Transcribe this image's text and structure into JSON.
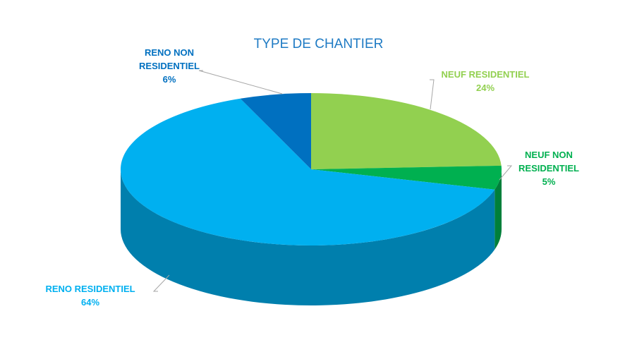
{
  "chart_data": {
    "type": "pie3d",
    "title": "TYPE DE CHANTIER",
    "categories": [
      "NEUF RESIDENTIEL",
      "NEUF NON RESIDENTIEL",
      "RENO RESIDENTIEL",
      "RENO NON RESIDENTIEL"
    ],
    "values": [
      24,
      5,
      64,
      6
    ],
    "value_labels": [
      "24%",
      "5%",
      "64%",
      "6%"
    ],
    "colors": [
      "#92d050",
      "#00b050",
      "#00b0f0",
      "#0070c0"
    ],
    "title_color": "#1f7bc4"
  }
}
